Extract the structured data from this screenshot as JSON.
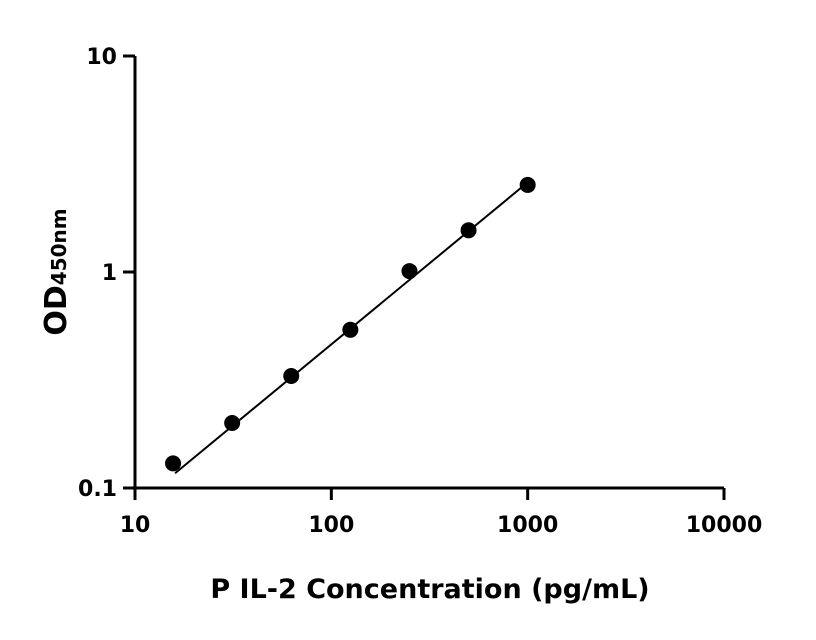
{
  "chart_data": {
    "type": "scatter",
    "title": "",
    "xlabel": "P IL-2 Concentration (pg/mL)",
    "ylabel_main": "OD",
    "ylabel_sub": "450nm",
    "x_scale": "log",
    "y_scale": "log",
    "xlim": [
      10,
      10000
    ],
    "ylim": [
      0.1,
      10
    ],
    "x_ticks": [
      10,
      100,
      1000,
      10000
    ],
    "x_tick_labels": [
      "10",
      "100",
      "1000",
      "10000"
    ],
    "y_ticks": [
      0.1,
      1,
      10
    ],
    "y_tick_labels": [
      "0.1",
      "1",
      "10"
    ],
    "grid": false,
    "points": {
      "x": [
        15.625,
        31.25,
        62.5,
        125,
        250,
        500,
        1000
      ],
      "y": [
        0.13,
        0.2,
        0.33,
        0.54,
        1.01,
        1.56,
        2.53
      ]
    },
    "fit_line": {
      "x": [
        16,
        1000
      ],
      "y": [
        0.117,
        2.6
      ]
    },
    "colors": {
      "marker": "#000000",
      "line": "#000000"
    }
  }
}
